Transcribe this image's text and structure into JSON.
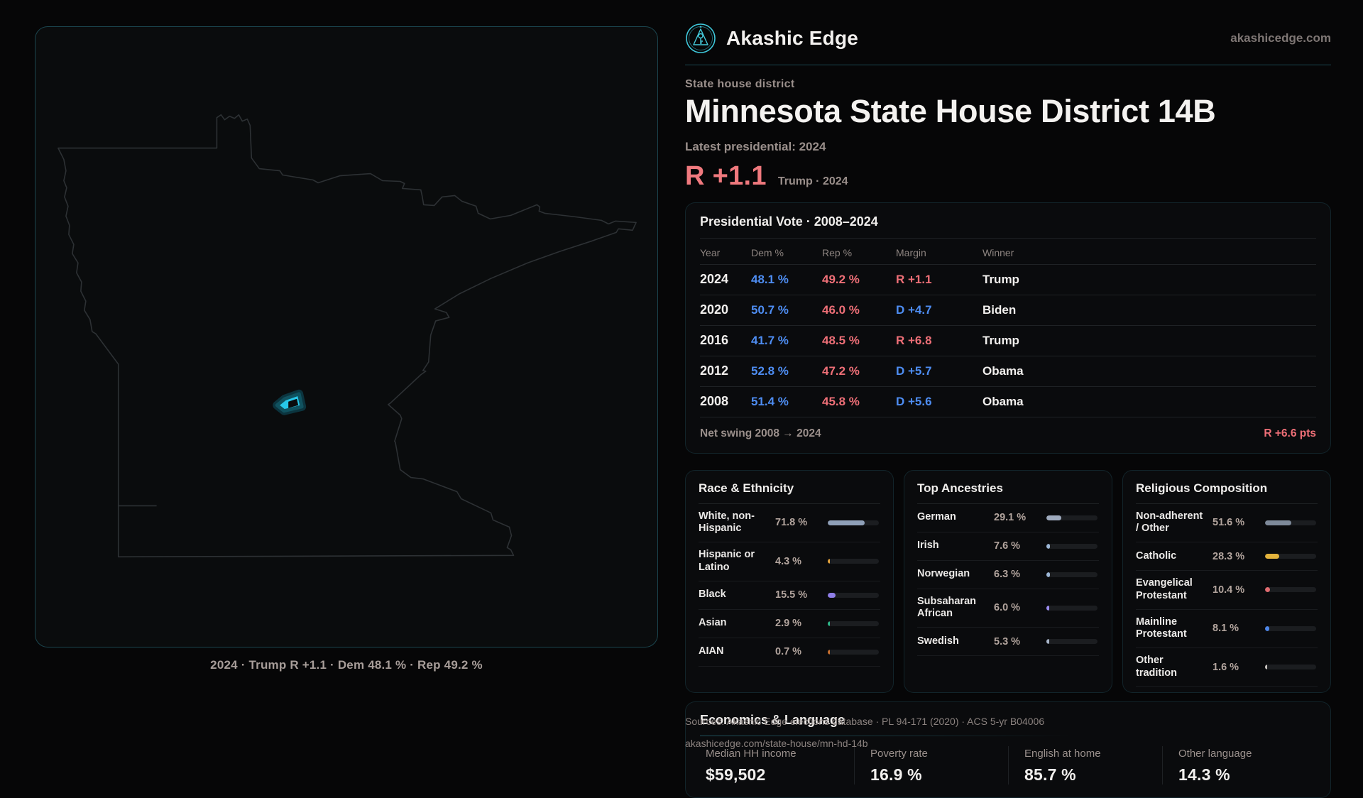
{
  "brand": {
    "name": "Akashic Edge",
    "domain": "akashicedge.com"
  },
  "header": {
    "kicker": "State house district",
    "title": "Minnesota State House District 14B",
    "latest_label": "Latest presidential: 2024",
    "margin_big": "R +1.1",
    "margin_context": "Trump · 2024"
  },
  "map": {
    "caption": "2024 · Trump R +1.1 · Dem 48.1 % · Rep 49.2 %",
    "district_color": "#27c7e9",
    "outline_color": "#2d3134"
  },
  "presidential_table": {
    "title": "Presidential Vote · 2008–2024",
    "columns": [
      "Year",
      "Dem %",
      "Rep %",
      "Margin",
      "Winner"
    ],
    "rows": [
      {
        "year": "2024",
        "dem": "48.1 %",
        "rep": "49.2 %",
        "margin": "R +1.1",
        "margin_side": "R",
        "winner": "Trump"
      },
      {
        "year": "2020",
        "dem": "50.7 %",
        "rep": "46.0 %",
        "margin": "D +4.7",
        "margin_side": "D",
        "winner": "Biden"
      },
      {
        "year": "2016",
        "dem": "41.7 %",
        "rep": "48.5 %",
        "margin": "R +6.8",
        "margin_side": "R",
        "winner": "Trump"
      },
      {
        "year": "2012",
        "dem": "52.8 %",
        "rep": "47.2 %",
        "margin": "D +5.7",
        "margin_side": "D",
        "winner": "Obama"
      },
      {
        "year": "2008",
        "dem": "51.4 %",
        "rep": "45.8 %",
        "margin": "D +5.6",
        "margin_side": "D",
        "winner": "Obama"
      }
    ],
    "net_swing_label": "Net swing 2008 → 2024",
    "net_swing_value": "R +6.6 pts"
  },
  "race_ethnicity": {
    "title": "Race & Ethnicity",
    "rows": [
      {
        "label": "White, non-Hispanic",
        "value": "71.8 %",
        "pct": 71.8,
        "color": "#8fa0b8"
      },
      {
        "label": "Hispanic or Latino",
        "value": "4.3 %",
        "pct": 4.3,
        "color": "#e5a33c"
      },
      {
        "label": "Black",
        "value": "15.5 %",
        "pct": 15.5,
        "color": "#8f7ee8"
      },
      {
        "label": "Asian",
        "value": "2.9 %",
        "pct": 2.9,
        "color": "#2eb98a"
      },
      {
        "label": "AIAN",
        "value": "0.7 %",
        "pct": 0.7,
        "color": "#c9702f"
      }
    ]
  },
  "ancestries": {
    "title": "Top Ancestries",
    "rows": [
      {
        "label": "German",
        "value": "29.1 %",
        "pct": 29.1,
        "color": "#9fabbe"
      },
      {
        "label": "Irish",
        "value": "7.6 %",
        "pct": 7.6,
        "color": "#9db7d6"
      },
      {
        "label": "Norwegian",
        "value": "6.3 %",
        "pct": 6.3,
        "color": "#9db7d6"
      },
      {
        "label": "Subsaharan African",
        "value": "6.0 %",
        "pct": 6.0,
        "color": "#9c8cf0"
      },
      {
        "label": "Swedish",
        "value": "5.3 %",
        "pct": 5.3,
        "color": "#a9b6c9"
      }
    ]
  },
  "religion": {
    "title": "Religious Composition",
    "rows": [
      {
        "label": "Non-adherent / Other",
        "value": "51.6 %",
        "pct": 51.6,
        "color": "#7e8a9a"
      },
      {
        "label": "Catholic",
        "value": "28.3 %",
        "pct": 28.3,
        "color": "#e3b33c"
      },
      {
        "label": "Evangelical Protestant",
        "value": "10.4 %",
        "pct": 10.4,
        "color": "#e06b70"
      },
      {
        "label": "Mainline Protestant",
        "value": "8.1 %",
        "pct": 8.1,
        "color": "#4d86e8"
      },
      {
        "label": "Other tradition",
        "value": "1.6 %",
        "pct": 1.6,
        "color": "#c9c4c0"
      }
    ]
  },
  "economics": {
    "title": "Economics & Language",
    "stats": [
      {
        "label": "Median HH income",
        "value": "$59,502"
      },
      {
        "label": "Poverty rate",
        "value": "16.9 %"
      },
      {
        "label": "English at home",
        "value": "85.7 %"
      },
      {
        "label": "Other language",
        "value": "14.3 %"
      }
    ]
  },
  "sources": {
    "line1": "Sources: Akashic Edge elections database · PL 94-171 (2020) · ACS 5-yr B04006",
    "line2": "akashicedge.com/state-house/mn-hd-14b"
  }
}
